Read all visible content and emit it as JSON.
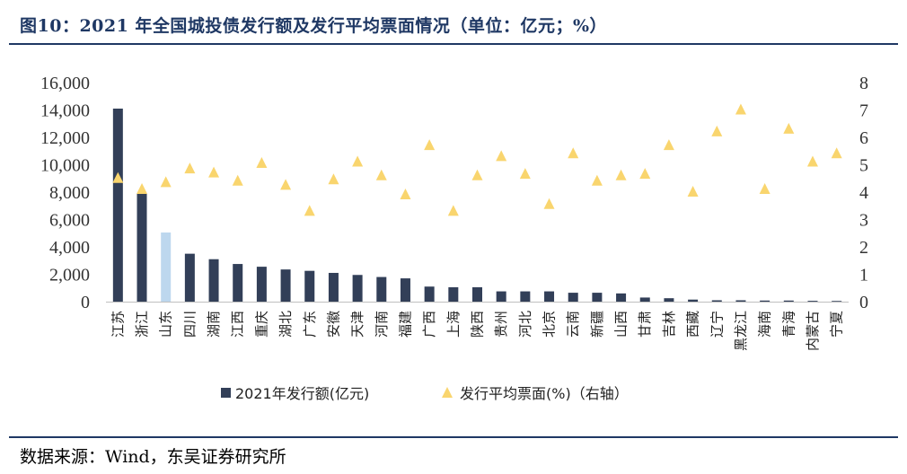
{
  "title": "图10：2021 年全国城投债发行额及发行平均票面情况（单位：亿元；%）",
  "source": "数据来源：Wind，东吴证券研究所",
  "colors": {
    "bar": "#323f58",
    "highlight": "#bdd7ee",
    "marker": "#f9d56e",
    "title": "#1f3864"
  },
  "chart_data": {
    "type": "bar",
    "categories": [
      "江苏",
      "浙江",
      "山东",
      "四川",
      "湖南",
      "江西",
      "重庆",
      "湖北",
      "广东",
      "安徽",
      "天津",
      "河南",
      "福建",
      "广西",
      "上海",
      "陕西",
      "贵州",
      "河北",
      "北京",
      "云南",
      "新疆",
      "山西",
      "甘肃",
      "吉林",
      "西藏",
      "辽宁",
      "黑龙江",
      "海南",
      "青海",
      "内蒙古",
      "宁夏"
    ],
    "highlight_category": "山东",
    "series": [
      {
        "name": "2021年发行额(亿元)",
        "type": "bar",
        "axis": "left",
        "values": [
          14100,
          7900,
          5050,
          3500,
          3100,
          2750,
          2550,
          2350,
          2250,
          2100,
          1950,
          1800,
          1700,
          1100,
          1050,
          1050,
          750,
          750,
          750,
          650,
          650,
          600,
          300,
          250,
          150,
          100,
          100,
          80,
          80,
          60,
          50
        ]
      },
      {
        "name": "发行平均票面(%)（右轴）",
        "type": "scatter",
        "axis": "right",
        "values": [
          4.5,
          4.1,
          4.35,
          4.85,
          4.7,
          4.4,
          5.05,
          4.25,
          3.3,
          4.45,
          5.1,
          4.6,
          3.9,
          5.7,
          3.3,
          4.6,
          5.3,
          4.65,
          3.55,
          5.4,
          4.4,
          4.6,
          4.65,
          5.7,
          4.0,
          6.2,
          7.0,
          4.1,
          6.3,
          5.1,
          5.4
        ]
      }
    ],
    "y_left": {
      "min": 0,
      "max": 16000,
      "ticks": [
        "0",
        "2,000",
        "4,000",
        "6,000",
        "8,000",
        "10,000",
        "12,000",
        "14,000",
        "16,000"
      ]
    },
    "y_right": {
      "min": 0,
      "max": 8,
      "ticks": [
        "0",
        "1",
        "2",
        "3",
        "4",
        "5",
        "6",
        "7",
        "8"
      ]
    },
    "legend": {
      "position": "bottom",
      "items": [
        "2021年发行额(亿元)",
        "发行平均票面(%)（右轴）"
      ]
    },
    "grid": false
  }
}
